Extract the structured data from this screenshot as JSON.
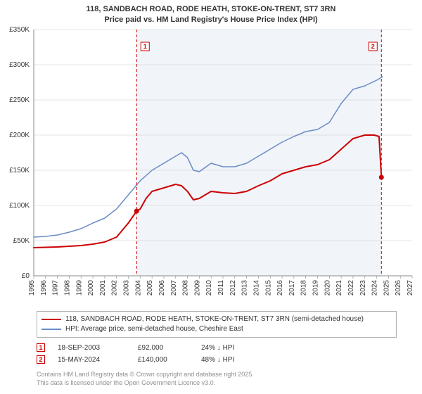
{
  "title_line1": "118, SANDBACH ROAD, RODE HEATH, STOKE-ON-TRENT, ST7 3RN",
  "title_line2": "Price paid vs. HM Land Registry's House Price Index (HPI)",
  "title_fontsize": 11,
  "chart": {
    "type": "line",
    "background_color": "#ffffff",
    "plot_shade_color": "#e8ecf4",
    "plot_shade_opacity": 0.6,
    "gridline_color": "#cccccc",
    "axis_color": "#888888",
    "xlim": [
      1995,
      2027
    ],
    "ylim": [
      0,
      350000
    ],
    "y_ticks": [
      0,
      50000,
      100000,
      150000,
      200000,
      250000,
      300000,
      350000
    ],
    "y_tick_labels": [
      "£0",
      "£50K",
      "£100K",
      "£150K",
      "£200K",
      "£250K",
      "£300K",
      "£350K"
    ],
    "x_ticks": [
      1995,
      1996,
      1997,
      1998,
      1999,
      2000,
      2001,
      2002,
      2003,
      2004,
      2005,
      2006,
      2007,
      2008,
      2009,
      2010,
      2011,
      2012,
      2013,
      2014,
      2015,
      2016,
      2017,
      2018,
      2019,
      2020,
      2021,
      2022,
      2023,
      2024,
      2025,
      2026,
      2027
    ],
    "x_tick_labels": [
      "1995",
      "1996",
      "1997",
      "1998",
      "1999",
      "2000",
      "2001",
      "2002",
      "2003",
      "2004",
      "2005",
      "2006",
      "2007",
      "2008",
      "2009",
      "2010",
      "2011",
      "2012",
      "2013",
      "2014",
      "2015",
      "2016",
      "2017",
      "2018",
      "2019",
      "2020",
      "2021",
      "2022",
      "2023",
      "2024",
      "2025",
      "2026",
      "2027"
    ],
    "shade_xstart": 2003.7,
    "shade_xend": 2024.4,
    "series": [
      {
        "name": "price_paid",
        "color": "#cc0000",
        "line_width": 2,
        "points": [
          [
            1995,
            40000
          ],
          [
            1996,
            40500
          ],
          [
            1997,
            41000
          ],
          [
            1998,
            42000
          ],
          [
            1999,
            43000
          ],
          [
            2000,
            45000
          ],
          [
            2001,
            48000
          ],
          [
            2002,
            55000
          ],
          [
            2003,
            75000
          ],
          [
            2003.7,
            92000
          ],
          [
            2004,
            95000
          ],
          [
            2004.5,
            110000
          ],
          [
            2005,
            120000
          ],
          [
            2006,
            125000
          ],
          [
            2007,
            130000
          ],
          [
            2007.5,
            128000
          ],
          [
            2008,
            120000
          ],
          [
            2008.5,
            108000
          ],
          [
            2009,
            110000
          ],
          [
            2010,
            120000
          ],
          [
            2011,
            118000
          ],
          [
            2012,
            117000
          ],
          [
            2013,
            120000
          ],
          [
            2014,
            128000
          ],
          [
            2015,
            135000
          ],
          [
            2016,
            145000
          ],
          [
            2017,
            150000
          ],
          [
            2018,
            155000
          ],
          [
            2019,
            158000
          ],
          [
            2020,
            165000
          ],
          [
            2021,
            180000
          ],
          [
            2022,
            195000
          ],
          [
            2023,
            200000
          ],
          [
            2023.8,
            200000
          ],
          [
            2024.2,
            198000
          ],
          [
            2024.4,
            140000
          ]
        ]
      },
      {
        "name": "hpi",
        "color": "#6a8cc7",
        "line_width": 1.5,
        "points": [
          [
            1995,
            55000
          ],
          [
            1996,
            56000
          ],
          [
            1997,
            58000
          ],
          [
            1998,
            62000
          ],
          [
            1999,
            67000
          ],
          [
            2000,
            75000
          ],
          [
            2001,
            82000
          ],
          [
            2002,
            95000
          ],
          [
            2003,
            115000
          ],
          [
            2004,
            135000
          ],
          [
            2005,
            150000
          ],
          [
            2006,
            160000
          ],
          [
            2007,
            170000
          ],
          [
            2007.5,
            175000
          ],
          [
            2008,
            168000
          ],
          [
            2008.5,
            150000
          ],
          [
            2009,
            148000
          ],
          [
            2010,
            160000
          ],
          [
            2011,
            155000
          ],
          [
            2012,
            155000
          ],
          [
            2013,
            160000
          ],
          [
            2014,
            170000
          ],
          [
            2015,
            180000
          ],
          [
            2016,
            190000
          ],
          [
            2017,
            198000
          ],
          [
            2018,
            205000
          ],
          [
            2019,
            208000
          ],
          [
            2020,
            218000
          ],
          [
            2021,
            245000
          ],
          [
            2022,
            265000
          ],
          [
            2023,
            270000
          ],
          [
            2024,
            278000
          ],
          [
            2024.5,
            283000
          ]
        ]
      }
    ],
    "sale_markers": [
      {
        "n": "1",
        "x": 2003.7,
        "y": 92000,
        "color": "#cc0000"
      },
      {
        "n": "2",
        "x": 2024.4,
        "y": 140000,
        "color": "#cc0000"
      }
    ],
    "marker_line_color": "#cc0000",
    "marker_line_dash": "4 3"
  },
  "legend": {
    "items": [
      {
        "color": "#cc0000",
        "label": "118, SANDBACH ROAD, RODE HEATH, STOKE-ON-TRENT, ST7 3RN (semi-detached house)"
      },
      {
        "color": "#6a8cc7",
        "label": "HPI: Average price, semi-detached house, Cheshire East"
      }
    ]
  },
  "sales": [
    {
      "n": "1",
      "date": "18-SEP-2003",
      "price": "£92,000",
      "delta": "24% ↓ HPI",
      "color": "#cc0000"
    },
    {
      "n": "2",
      "date": "15-MAY-2024",
      "price": "£140,000",
      "delta": "48% ↓ HPI",
      "color": "#cc0000"
    }
  ],
  "footer_line1": "Contains HM Land Registry data © Crown copyright and database right 2025.",
  "footer_line2": "This data is licensed under the Open Government Licence v3.0."
}
